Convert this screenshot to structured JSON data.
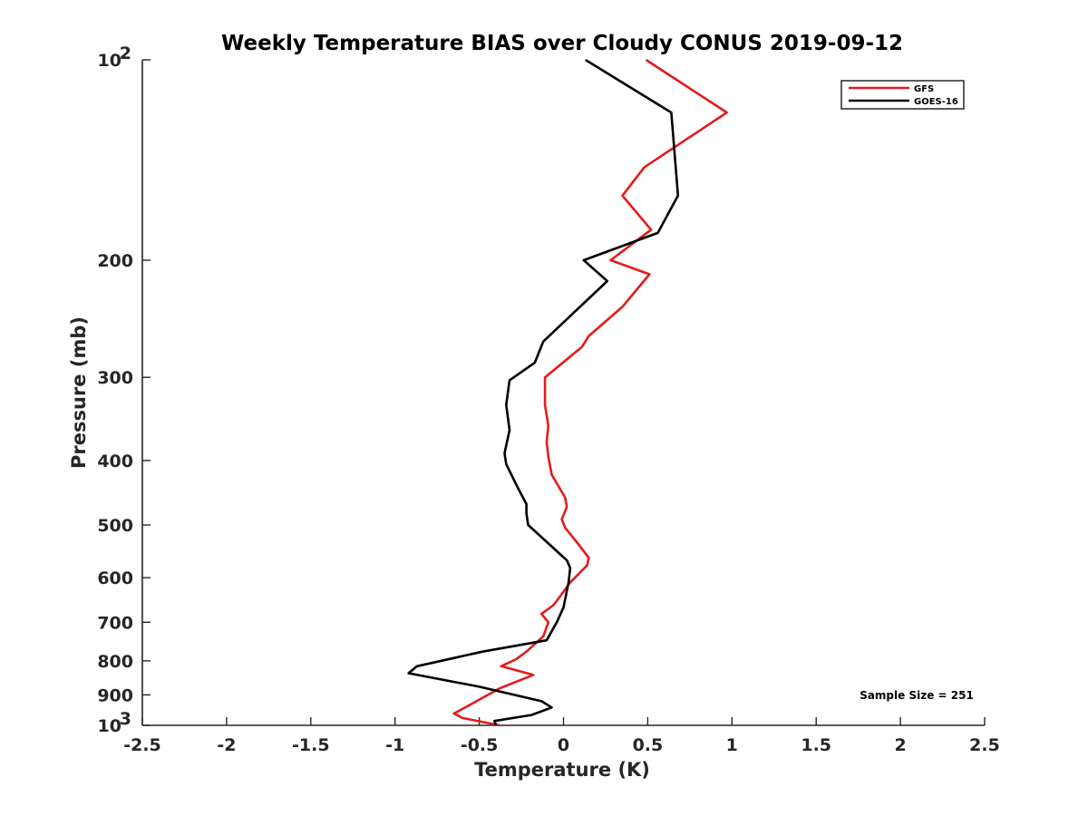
{
  "chart_data": {
    "type": "line",
    "title": "Weekly Temperature BIAS over Cloudy CONUS 2019-09-12",
    "xlabel": "Temperature (K)",
    "ylabel": "Pressure (mb)",
    "xlim": [
      -2.5,
      2.5
    ],
    "ylim": [
      100,
      1000
    ],
    "y_scale": "log",
    "y_reversed": true,
    "x_ticks": [
      "-2.5",
      "-2",
      "-1.5",
      "-1",
      "-0.5",
      "0",
      "0.5",
      "1",
      "1.5",
      "2",
      "2.5"
    ],
    "y_ticks": [
      {
        "value": 100,
        "label": "10",
        "exp": "2"
      },
      {
        "value": 200,
        "label": "200"
      },
      {
        "value": 300,
        "label": "300"
      },
      {
        "value": 400,
        "label": "400"
      },
      {
        "value": 500,
        "label": "500"
      },
      {
        "value": 600,
        "label": "600"
      },
      {
        "value": 700,
        "label": "700"
      },
      {
        "value": 800,
        "label": "800"
      },
      {
        "value": 900,
        "label": "900"
      },
      {
        "value": 1000,
        "label": "10",
        "exp": "3"
      }
    ],
    "grid": false,
    "legend_position": "top-right",
    "annotation": "Sample Size = 251",
    "series": [
      {
        "name": "GFS",
        "color": "#e41a1c",
        "points": [
          [
            0.49,
            100
          ],
          [
            0.97,
            120
          ],
          [
            0.48,
            145
          ],
          [
            0.35,
            160
          ],
          [
            0.52,
            180
          ],
          [
            0.28,
            200
          ],
          [
            0.51,
            210
          ],
          [
            0.35,
            235
          ],
          [
            0.15,
            260
          ],
          [
            0.11,
            270
          ],
          [
            -0.11,
            300
          ],
          [
            -0.11,
            330
          ],
          [
            -0.09,
            355
          ],
          [
            -0.1,
            375
          ],
          [
            -0.09,
            395
          ],
          [
            -0.07,
            420
          ],
          [
            0.01,
            455
          ],
          [
            0.02,
            470
          ],
          [
            -0.01,
            490
          ],
          [
            0.01,
            505
          ],
          [
            0.09,
            535
          ],
          [
            0.15,
            560
          ],
          [
            0.14,
            575
          ],
          [
            0.04,
            610
          ],
          [
            0.0,
            630
          ],
          [
            -0.06,
            660
          ],
          [
            -0.13,
            680
          ],
          [
            -0.09,
            700
          ],
          [
            -0.12,
            735
          ],
          [
            -0.22,
            775
          ],
          [
            -0.28,
            795
          ],
          [
            -0.37,
            815
          ],
          [
            -0.18,
            840
          ],
          [
            -0.38,
            880
          ],
          [
            -0.55,
            930
          ],
          [
            -0.65,
            960
          ],
          [
            -0.6,
            975
          ],
          [
            -0.38,
            1000
          ]
        ]
      },
      {
        "name": "GOES-16",
        "color": "#000000",
        "points": [
          [
            0.13,
            100
          ],
          [
            0.64,
            120
          ],
          [
            0.68,
            160
          ],
          [
            0.56,
            182
          ],
          [
            0.12,
            200
          ],
          [
            0.26,
            215
          ],
          [
            0.06,
            240
          ],
          [
            -0.12,
            265
          ],
          [
            -0.17,
            285
          ],
          [
            -0.32,
            303
          ],
          [
            -0.34,
            330
          ],
          [
            -0.32,
            360
          ],
          [
            -0.35,
            390
          ],
          [
            -0.34,
            405
          ],
          [
            -0.27,
            440
          ],
          [
            -0.22,
            465
          ],
          [
            -0.22,
            480
          ],
          [
            -0.21,
            500
          ],
          [
            0.02,
            565
          ],
          [
            0.04,
            580
          ],
          [
            0.03,
            610
          ],
          [
            0.0,
            665
          ],
          [
            -0.04,
            700
          ],
          [
            -0.1,
            745
          ],
          [
            -0.48,
            775
          ],
          [
            -0.87,
            815
          ],
          [
            -0.92,
            835
          ],
          [
            -0.5,
            875
          ],
          [
            -0.13,
            920
          ],
          [
            -0.07,
            940
          ],
          [
            -0.19,
            965
          ],
          [
            -0.41,
            985
          ],
          [
            -0.4,
            1000
          ]
        ]
      }
    ]
  }
}
